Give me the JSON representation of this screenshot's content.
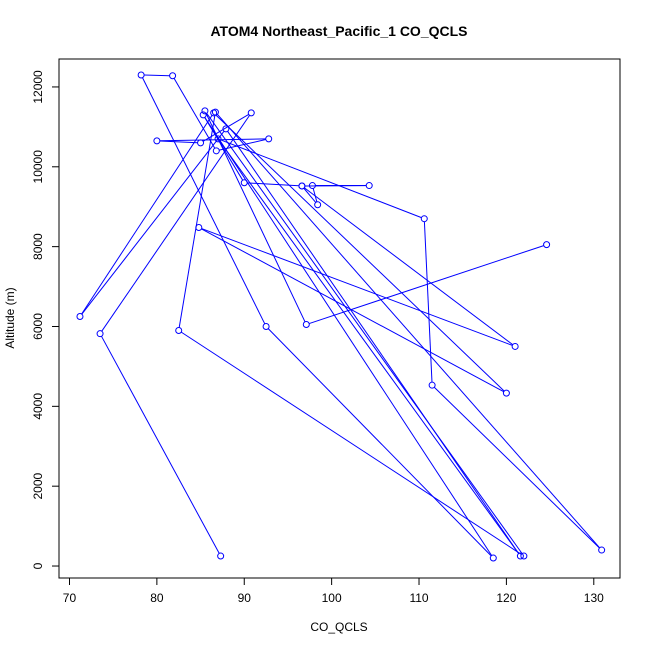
{
  "chart_data": {
    "type": "line",
    "title": "ATOM4 Northeast_Pacific_1 CO_QCLS",
    "xlabel": "CO_QCLS",
    "ylabel": "Altitude (m)",
    "xlim": [
      68.8,
      133.0
    ],
    "ylim": [
      -300,
      12700
    ],
    "xticks": [
      70,
      80,
      90,
      100,
      110,
      120,
      130
    ],
    "yticks": [
      0,
      2000,
      4000,
      6000,
      8000,
      10000,
      12000
    ],
    "grid": false,
    "marker": "open-circle",
    "series_color": "#0000ff",
    "series": [
      {
        "x": [
          87.3,
          73.5,
          90.8,
          85.0,
          80.0,
          92.8,
          86.8,
          81.8,
          78.2,
          92.5,
          118.5,
          85.3,
          90.0,
          96.6,
          104.3,
          97.8,
          98.4,
          96.6,
          121.0,
          84.8,
          120.0,
          86.5,
          71.2,
          87.9,
          121.6,
          87.0,
          110.6,
          111.5,
          130.9,
          86.7,
          82.5,
          122.0,
          85.5,
          97.1,
          124.6
        ],
        "y": [
          250,
          5820,
          11350,
          10600,
          10650,
          10700,
          10400,
          12280,
          12300,
          6000,
          200,
          11300,
          9600,
          9520,
          9530,
          9530,
          9050,
          9520,
          5500,
          8480,
          4330,
          11350,
          6250,
          10950,
          250,
          10700,
          8700,
          4530,
          400,
          11370,
          5900,
          250,
          11400,
          6050,
          8050
        ]
      }
    ]
  }
}
